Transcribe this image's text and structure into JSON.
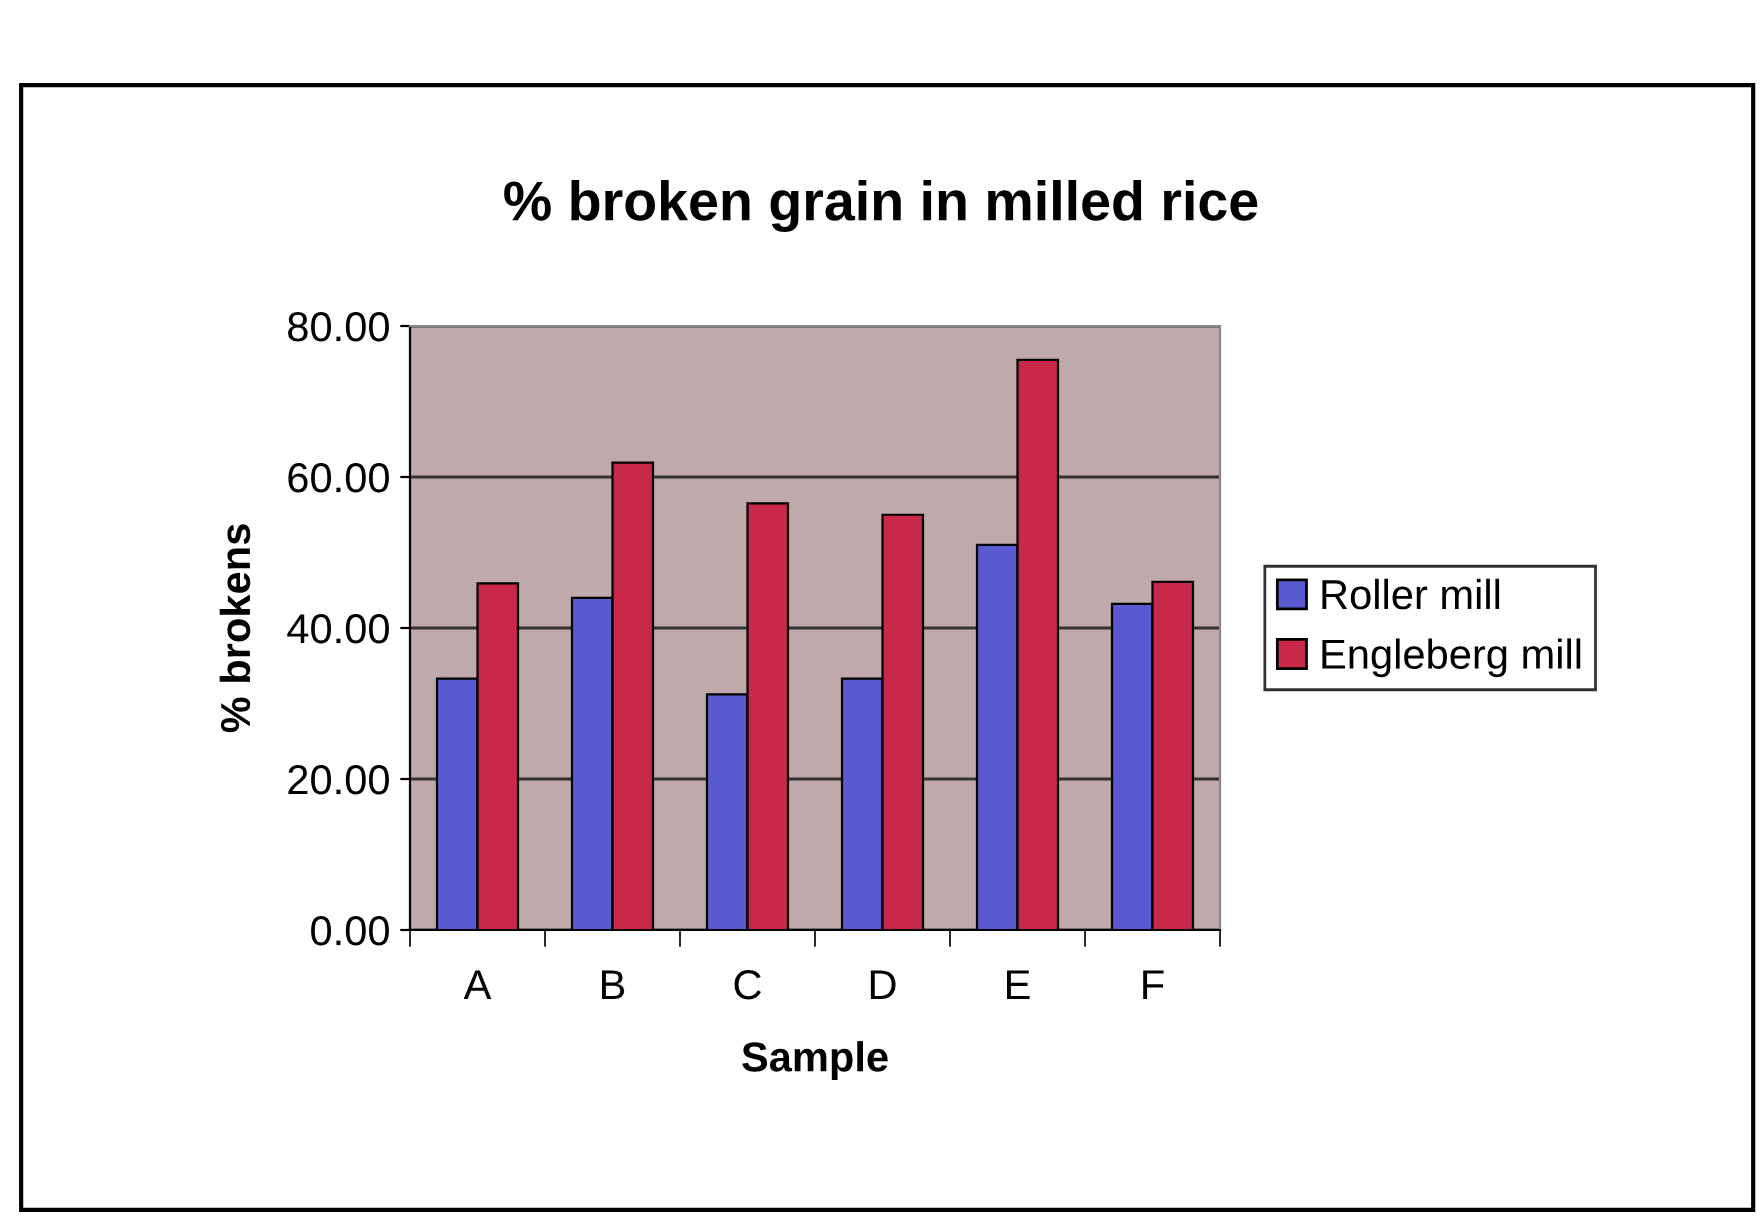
{
  "chart_data": {
    "type": "bar",
    "title": "% broken grain in milled rice",
    "xlabel": "Sample",
    "ylabel": "% brokens",
    "categories": [
      "A",
      "B",
      "C",
      "D",
      "E",
      "F"
    ],
    "series": [
      {
        "name": "Roller mill",
        "color": "#5a5ad0",
        "values": [
          33.3,
          44.0,
          31.2,
          33.3,
          51.0,
          43.2
        ]
      },
      {
        "name": "Engleberg mill",
        "color": "#c8284a",
        "values": [
          45.9,
          61.9,
          56.5,
          55.0,
          75.5,
          46.1
        ]
      }
    ],
    "ylim": [
      0,
      80
    ],
    "yticks": [
      {
        "value": 0,
        "label": "0.00"
      },
      {
        "value": 20,
        "label": "20.00"
      },
      {
        "value": 40,
        "label": "40.00"
      },
      {
        "value": 60,
        "label": "60.00"
      },
      {
        "value": 80,
        "label": "80.00"
      }
    ],
    "grid": "y",
    "legend": "right"
  }
}
